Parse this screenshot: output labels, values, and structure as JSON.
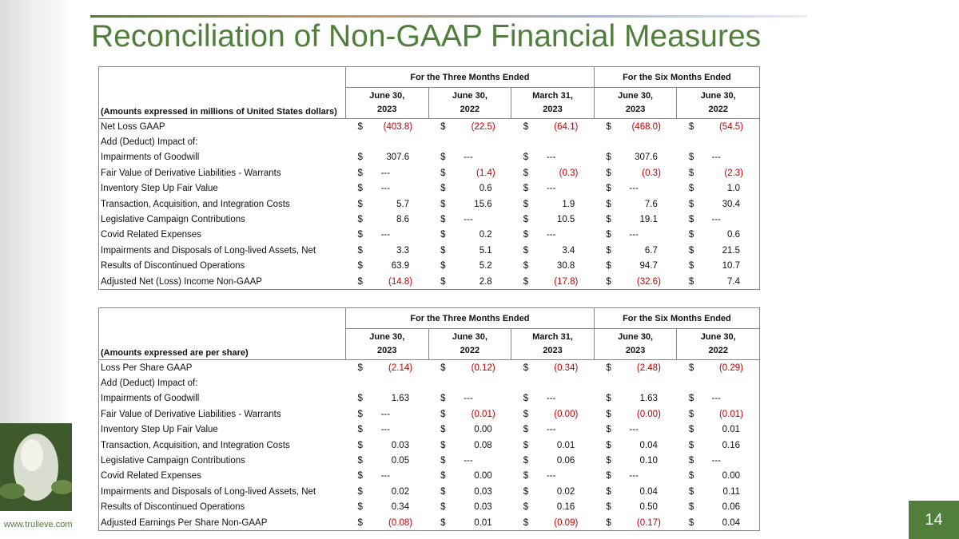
{
  "title": "Reconciliation of Non-GAAP Financial Measures",
  "url": "www.trulieve.com",
  "page_number": "14",
  "tables": [
    {
      "group_headers": [
        "For the Three Months Ended",
        "For the Six Months Ended"
      ],
      "columns": [
        [
          "June 30,",
          "2023"
        ],
        [
          "June 30,",
          "2022"
        ],
        [
          "March 31,",
          "2023"
        ],
        [
          "June 30,",
          "2023"
        ],
        [
          "June 30,",
          "2022"
        ]
      ],
      "units_note": "(Amounts expressed in millions of United States dollars)",
      "currency": "$",
      "rows": [
        {
          "label": "Net Loss GAAP",
          "values": [
            "(403.8)",
            "(22.5)",
            "(64.1)",
            "(468.0)",
            "(54.5)"
          ]
        },
        {
          "label": "Add (Deduct) Impact of:",
          "values": []
        },
        {
          "label": "Impairments of Goodwill",
          "values": [
            "307.6",
            "---",
            "---",
            "307.6",
            "---"
          ]
        },
        {
          "label": "Fair Value of Derivative Liabilities - Warrants",
          "values": [
            "---",
            "(1.4)",
            "(0.3)",
            "(0.3)",
            "(2.3)"
          ]
        },
        {
          "label": "Inventory Step Up Fair Value",
          "values": [
            "---",
            "0.6",
            "---",
            "---",
            "1.0"
          ]
        },
        {
          "label": "Transaction, Acquisition, and Integration Costs",
          "values": [
            "5.7",
            "15.6",
            "1.9",
            "7.6",
            "30.4"
          ]
        },
        {
          "label": "Legislative Campaign Contributions",
          "values": [
            "8.6",
            "---",
            "10.5",
            "19.1",
            "---"
          ]
        },
        {
          "label": "Covid Related Expenses",
          "values": [
            "---",
            "0.2",
            "---",
            "---",
            "0.6"
          ]
        },
        {
          "label": "Impairments and Disposals of Long-lived Assets, Net",
          "values": [
            "3.3",
            "5.1",
            "3.4",
            "6.7",
            "21.5"
          ]
        },
        {
          "label": "Results of Discontinued Operations",
          "values": [
            "63.9",
            "5.2",
            "30.8",
            "94.7",
            "10.7"
          ]
        },
        {
          "label": "Adjusted Net (Loss) Income Non-GAAP",
          "values": [
            "(14.8)",
            "2.8",
            "(17.8)",
            "(32.6)",
            "7.4"
          ]
        }
      ]
    },
    {
      "group_headers": [
        "For the Three Months Ended",
        "For the Six Months Ended"
      ],
      "columns": [
        [
          "June 30,",
          "2023"
        ],
        [
          "June 30,",
          "2022"
        ],
        [
          "March 31,",
          "2023"
        ],
        [
          "June 30,",
          "2023"
        ],
        [
          "June 30,",
          "2022"
        ]
      ],
      "units_note": "(Amounts expressed are per share)",
      "currency": "$",
      "rows": [
        {
          "label": "Loss Per Share GAAP",
          "values": [
            "(2.14)",
            "(0.12)",
            "(0.34)",
            "(2.48)",
            "(0.29)"
          ]
        },
        {
          "label": "Add (Deduct) Impact of:",
          "values": []
        },
        {
          "label": "Impairments of Goodwill",
          "values": [
            "1.63",
            "---",
            "---",
            "1.63",
            "---"
          ]
        },
        {
          "label": "Fair Value of Derivative Liabilities - Warrants",
          "values": [
            "---",
            "(0.01)",
            "(0.00)",
            "(0.00)",
            "(0.01)"
          ]
        },
        {
          "label": "Inventory Step Up Fair Value",
          "values": [
            "---",
            "0.00",
            "---",
            "---",
            "0.01"
          ]
        },
        {
          "label": "Transaction, Acquisition, and Integration Costs",
          "values": [
            "0.03",
            "0.08",
            "0.01",
            "0.04",
            "0.16"
          ]
        },
        {
          "label": "Legislative Campaign Contributions",
          "values": [
            "0.05",
            "---",
            "0.06",
            "0.10",
            "---"
          ]
        },
        {
          "label": "Covid Related Expenses",
          "values": [
            "---",
            "0.00",
            "---",
            "---",
            "0.00"
          ]
        },
        {
          "label": "Impairments and Disposals of Long-lived Assets, Net",
          "values": [
            "0.02",
            "0.03",
            "0.02",
            "0.04",
            "0.11"
          ]
        },
        {
          "label": "Results of Discontinued Operations",
          "values": [
            "0.34",
            "0.03",
            "0.16",
            "0.50",
            "0.06"
          ]
        },
        {
          "label": "Adjusted Earnings Per Share Non-GAAP",
          "values": [
            "(0.08)",
            "0.01",
            "(0.09)",
            "(0.17)",
            "0.04"
          ]
        }
      ]
    }
  ]
}
